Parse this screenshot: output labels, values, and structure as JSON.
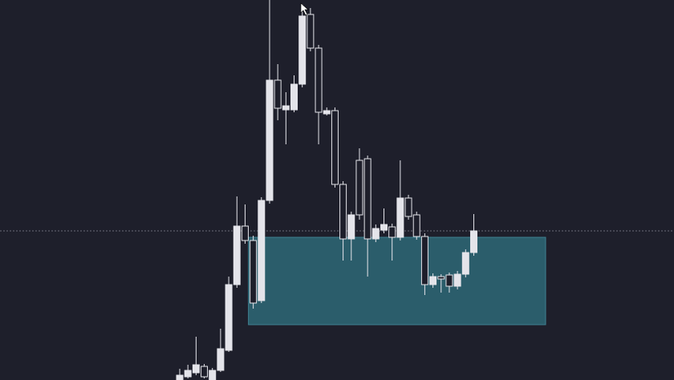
{
  "chart_data": {
    "type": "candlestick",
    "open": [
      0,
      4,
      9,
      17,
      0,
      12,
      37,
      119,
      192,
      174,
      99,
      224,
      374,
      337,
      337,
      369,
      456,
      414,
      332,
      336,
      244,
      176,
      274,
      276,
      176,
      187,
      191,
      178,
      227,
      206,
      179,
      119,
      129,
      131,
      117,
      132,
      159
    ],
    "high": [
      14,
      19,
      54,
      20,
      15,
      64,
      129,
      229,
      219,
      180,
      228,
      474,
      394,
      359,
      380,
      469,
      464,
      418,
      340,
      340,
      248,
      210,
      289,
      280,
      194,
      214,
      195,
      274,
      231,
      210,
      183,
      133,
      132,
      134,
      136,
      163,
      207
    ],
    "low": [
      0,
      2,
      6,
      2,
      0,
      10,
      35,
      115,
      170,
      89,
      96,
      220,
      324,
      294,
      334,
      365,
      410,
      294,
      330,
      240,
      149,
      149,
      200,
      129,
      172,
      183,
      149,
      174,
      200,
      175,
      106,
      115,
      109,
      109,
      113,
      128,
      155
    ],
    "close": [
      6,
      12,
      19,
      4,
      12,
      39,
      119,
      192,
      174,
      96,
      224,
      374,
      339,
      342,
      369,
      454,
      414,
      334,
      336,
      244,
      176,
      206,
      206,
      176,
      189,
      194,
      178,
      227,
      204,
      179,
      119,
      129,
      126,
      117,
      132,
      159,
      186
    ],
    "level": 186,
    "zone": [
      69,
      178
    ],
    "ylim": [
      0,
      474
    ],
    "color": "#e4e4ea",
    "zone_color": "#2b5d6b"
  }
}
